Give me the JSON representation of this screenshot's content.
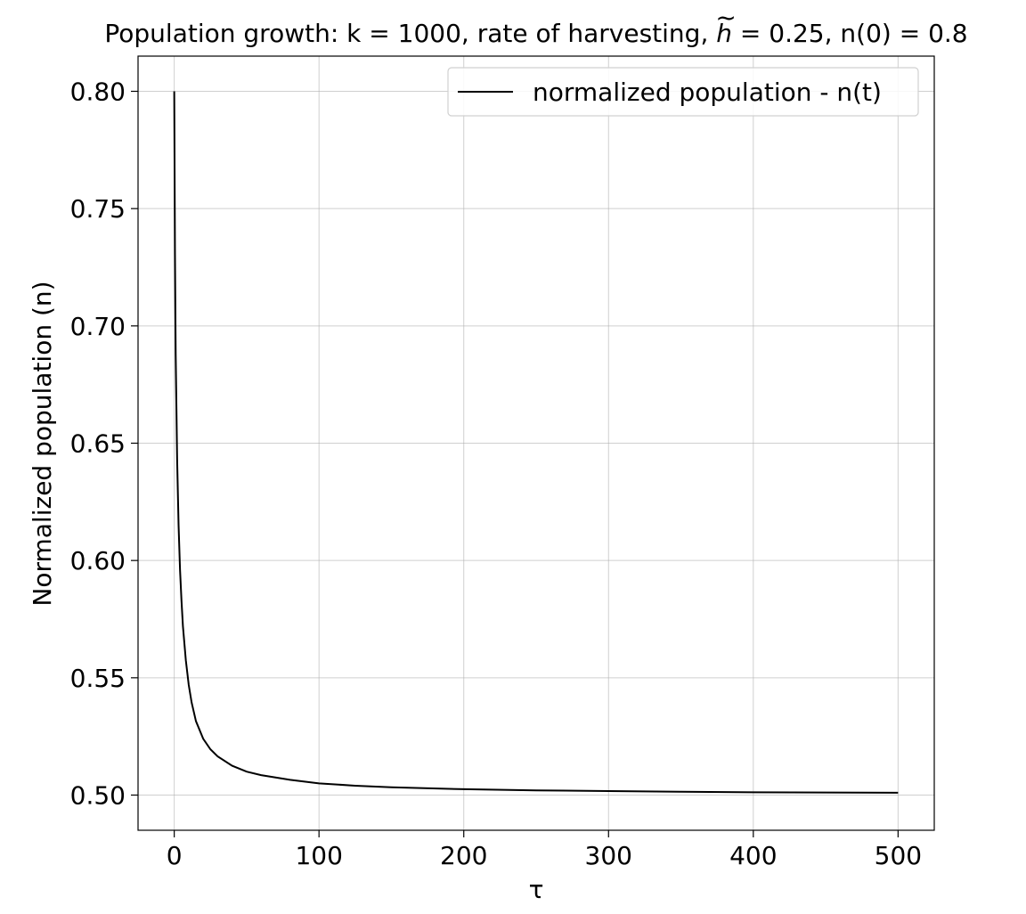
{
  "chart_data": {
    "type": "line",
    "title_parts": {
      "before": "Population growth: k = 1000, rate of harvesting, ",
      "symbol_base": "h",
      "symbol_accent": "~",
      "after": " = 0.25, n(0) = 0.8"
    },
    "xlabel": "τ",
    "ylabel": "Normalized population (n)",
    "xlim": [
      -25,
      525
    ],
    "ylim": [
      0.485,
      0.815
    ],
    "xticks": [
      0,
      100,
      200,
      300,
      400,
      500
    ],
    "xtick_labels": [
      "0",
      "100",
      "200",
      "300",
      "400",
      "500"
    ],
    "yticks": [
      0.5,
      0.55,
      0.6,
      0.65,
      0.7,
      0.75,
      0.8
    ],
    "ytick_labels": [
      "0.50",
      "0.55",
      "0.60",
      "0.65",
      "0.70",
      "0.75",
      "0.80"
    ],
    "grid": true,
    "legend_position": "top-right",
    "series": [
      {
        "name": "normalized population - n(t)",
        "color": "#000000",
        "x": [
          0,
          0.5,
          1,
          2,
          3,
          4,
          5,
          6,
          8,
          10,
          12,
          15,
          20,
          25,
          30,
          40,
          50,
          60,
          80,
          100,
          125,
          150,
          200,
          250,
          300,
          350,
          400,
          450,
          500
        ],
        "y": [
          0.8,
          0.731,
          0.688,
          0.643,
          0.615,
          0.596,
          0.583,
          0.572,
          0.5575,
          0.547,
          0.5395,
          0.5315,
          0.524,
          0.5195,
          0.5165,
          0.5125,
          0.51,
          0.5085,
          0.5065,
          0.505,
          0.504,
          0.5033,
          0.5025,
          0.502,
          0.5017,
          0.5014,
          0.5012,
          0.5011,
          0.501
        ]
      }
    ]
  }
}
